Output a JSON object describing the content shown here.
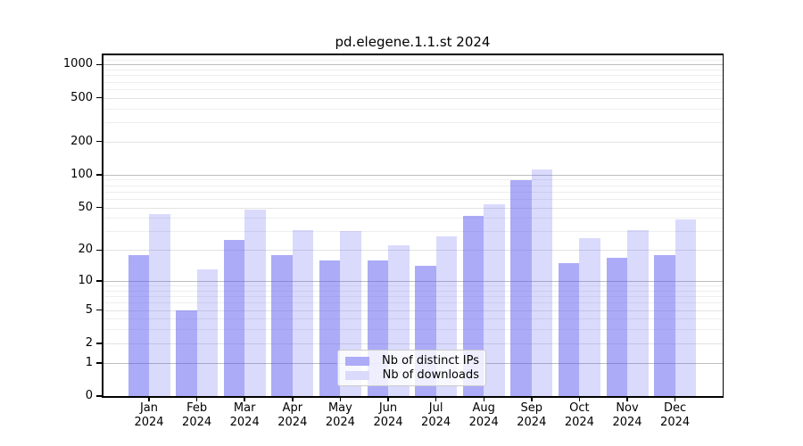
{
  "title": "pd.elegene.1.1.st 2024",
  "chart_data": {
    "type": "bar",
    "title": "pd.elegene.1.1.st 2024",
    "categories": [
      "Jan",
      "Feb",
      "Mar",
      "Apr",
      "May",
      "Jun",
      "Jul",
      "Aug",
      "Sep",
      "Oct",
      "Nov",
      "Dec"
    ],
    "categories_year": "2024",
    "series": [
      {
        "name": "Nb of distinct IPs",
        "values": [
          18,
          5,
          25,
          18,
          16,
          16,
          14,
          42,
          89,
          15,
          17,
          18
        ],
        "color": "rgba(88,88,240,0.5)",
        "legend_color": "#acacf8"
      },
      {
        "name": "Nb of downloads",
        "values": [
          43,
          13,
          48,
          31,
          30,
          22,
          27,
          53,
          112,
          26,
          31,
          39
        ],
        "color": "rgba(88,88,240,0.22)",
        "legend_color": "#dadafc"
      }
    ],
    "yscale": "symlog (y = ln(1+x))",
    "yticks": [
      0,
      1,
      2,
      5,
      10,
      20,
      50,
      100,
      200,
      500,
      1000
    ],
    "ytick_labels": [
      "0",
      "1",
      "2",
      "5",
      "10",
      "20",
      "50",
      "100",
      "200",
      "500",
      "1000"
    ],
    "ylim": [
      0,
      1230
    ],
    "grid": "on",
    "gridline_major_values": [
      1,
      10,
      100,
      1000
    ],
    "gridline_light_values": [
      2,
      5,
      20,
      50,
      200,
      500
    ],
    "gridline_minor_values": [
      3,
      4,
      6,
      7,
      8,
      9,
      30,
      40,
      60,
      70,
      80,
      90,
      300,
      400,
      600,
      700,
      800,
      900,
      1100
    ],
    "legend_position": "lower center",
    "colors": {
      "bar_dark": "rgba(88,88,240,0.5)",
      "bar_light": "rgba(88,88,240,0.22)",
      "grid_major": "#bdbdbd",
      "grid_light": "#e2e2e2",
      "grid_minor": "#eeeeee",
      "axis": "#000000",
      "text": "#000000"
    }
  },
  "legend": {
    "items": [
      {
        "label": "Nb of distinct IPs",
        "color": "#acacf8"
      },
      {
        "label": "Nb of downloads",
        "color": "#dadafc"
      }
    ]
  }
}
